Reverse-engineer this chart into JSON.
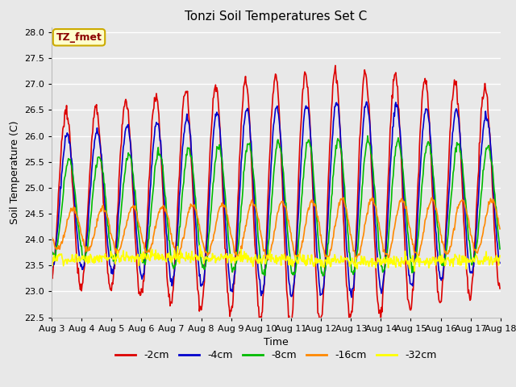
{
  "title": "Tonzi Soil Temperatures Set C",
  "xlabel": "Time",
  "ylabel": "Soil Temperature (C)",
  "ylim": [
    22.5,
    28.1
  ],
  "annotation": "TZ_fmet",
  "bg_color": "#e8e8e8",
  "grid_color": "white",
  "series": {
    "-2cm": {
      "color": "#dd0000",
      "lw": 1.2
    },
    "-4cm": {
      "color": "#0000cc",
      "lw": 1.2
    },
    "-8cm": {
      "color": "#00bb00",
      "lw": 1.2
    },
    "-16cm": {
      "color": "#ff8800",
      "lw": 1.2
    },
    "-32cm": {
      "color": "#ffff00",
      "lw": 1.2
    }
  },
  "legend_order": [
    "-2cm",
    "-4cm",
    "-8cm",
    "-16cm",
    "-32cm"
  ],
  "day_labels": [
    "Aug 3",
    "Aug 4",
    "Aug 5",
    "Aug 6",
    "Aug 7",
    "Aug 8",
    "Aug 9",
    "Aug 10",
    "Aug 11",
    "Aug 12",
    "Aug 13",
    "Aug 14",
    "Aug 15",
    "Aug 16",
    "Aug 17",
    "Aug 18"
  ]
}
